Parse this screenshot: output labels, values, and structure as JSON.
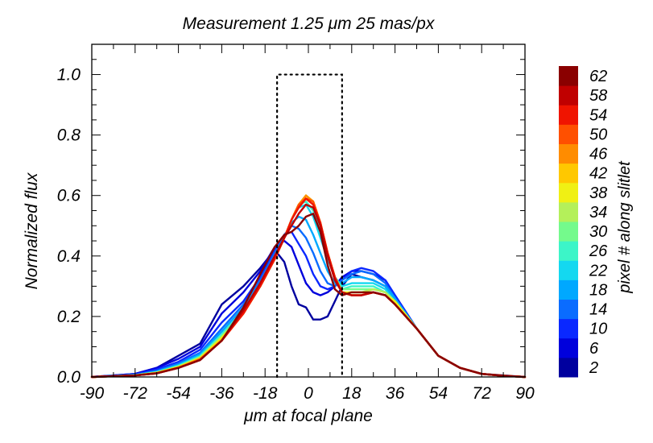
{
  "chart_data": {
    "type": "line",
    "title": "Measurement   1.25 μm   25 mas/px",
    "xlabel": "μm at focal plane",
    "ylabel": "Normalized flux",
    "xlim": [
      -90,
      90
    ],
    "ylim": [
      0,
      1.1
    ],
    "xticks": [
      -90,
      -72,
      -54,
      -36,
      -18,
      0,
      18,
      36,
      54,
      72,
      90
    ],
    "xtick_labels": [
      "-90",
      "-72",
      "-54",
      "-36",
      "-18",
      "0",
      "18",
      "36",
      "54",
      "72",
      "90"
    ],
    "yticks": [
      0,
      0.2,
      0.4,
      0.6,
      0.8,
      1.0
    ],
    "ytick_labels": [
      "0.0",
      "0.2",
      "0.4",
      "0.6",
      "0.8",
      "1.0"
    ],
    "slit_box": {
      "x": [
        -13,
        14
      ],
      "y": [
        0,
        1.0
      ]
    },
    "colorbar": {
      "label": "pixel # along slitlet",
      "tick_labels": [
        "2",
        "6",
        "10",
        "14",
        "18",
        "22",
        "26",
        "30",
        "34",
        "38",
        "42",
        "46",
        "50",
        "54",
        "58",
        "62"
      ],
      "colors": [
        "#00009f",
        "#0000dc",
        "#0a28ff",
        "#0a6cff",
        "#00a8ff",
        "#14d8f0",
        "#3cf5c8",
        "#74fa8c",
        "#b4f05a",
        "#f0f014",
        "#ffc800",
        "#ff8c00",
        "#ff5000",
        "#f01400",
        "#c00000",
        "#8a0000"
      ]
    },
    "series": [
      {
        "name": "2",
        "color": "#00009f",
        "x": [
          -90,
          -72,
          -63,
          -54,
          -45,
          -36,
          -27,
          -20,
          -14,
          -10,
          -7,
          -4,
          -1,
          2,
          5,
          8,
          11,
          14,
          18,
          22,
          27,
          32,
          36,
          45,
          54,
          63,
          72,
          81,
          90
        ],
        "y": [
          0,
          0.01,
          0.03,
          0.07,
          0.11,
          0.24,
          0.3,
          0.36,
          0.42,
          0.38,
          0.3,
          0.24,
          0.23,
          0.19,
          0.19,
          0.2,
          0.25,
          0.3,
          0.34,
          0.33,
          0.32,
          0.3,
          0.25,
          0.16,
          0.07,
          0.03,
          0.01,
          0.005,
          0
        ]
      },
      {
        "name": "6",
        "color": "#0000dc",
        "x": [
          -90,
          -72,
          -63,
          -54,
          -45,
          -36,
          -27,
          -20,
          -14,
          -10,
          -7,
          -4,
          -1,
          2,
          5,
          8,
          11,
          14,
          18,
          22,
          27,
          32,
          36,
          45,
          54,
          63,
          72,
          81,
          90
        ],
        "y": [
          0,
          0.01,
          0.03,
          0.06,
          0.1,
          0.21,
          0.28,
          0.35,
          0.43,
          0.45,
          0.43,
          0.37,
          0.31,
          0.28,
          0.27,
          0.28,
          0.3,
          0.33,
          0.35,
          0.35,
          0.34,
          0.32,
          0.27,
          0.16,
          0.07,
          0.03,
          0.01,
          0.004,
          0
        ]
      },
      {
        "name": "10",
        "color": "#0a28ff",
        "x": [
          -90,
          -72,
          -63,
          -54,
          -45,
          -36,
          -27,
          -20,
          -14,
          -10,
          -7,
          -4,
          -1,
          2,
          5,
          8,
          11,
          14,
          18,
          22,
          27,
          32,
          36,
          45,
          54,
          63,
          72,
          81,
          90
        ],
        "y": [
          0,
          0.008,
          0.025,
          0.05,
          0.09,
          0.18,
          0.25,
          0.33,
          0.42,
          0.47,
          0.48,
          0.44,
          0.4,
          0.34,
          0.3,
          0.29,
          0.3,
          0.32,
          0.35,
          0.36,
          0.35,
          0.32,
          0.27,
          0.16,
          0.07,
          0.03,
          0.01,
          0.004,
          0
        ]
      },
      {
        "name": "14",
        "color": "#0a6cff",
        "x": [
          -90,
          -72,
          -63,
          -54,
          -45,
          -36,
          -27,
          -20,
          -14,
          -10,
          -7,
          -4,
          -1,
          2,
          5,
          8,
          11,
          14,
          18,
          22,
          27,
          32,
          36,
          45,
          54,
          63,
          72,
          81,
          90
        ],
        "y": [
          0,
          0.007,
          0.02,
          0.045,
          0.08,
          0.16,
          0.24,
          0.32,
          0.41,
          0.47,
          0.5,
          0.49,
          0.46,
          0.41,
          0.35,
          0.31,
          0.3,
          0.32,
          0.34,
          0.35,
          0.34,
          0.31,
          0.26,
          0.16,
          0.07,
          0.03,
          0.01,
          0.004,
          0
        ]
      },
      {
        "name": "18",
        "color": "#00a8ff",
        "x": [
          -90,
          -72,
          -63,
          -54,
          -45,
          -36,
          -27,
          -20,
          -14,
          -10,
          -7,
          -4,
          -1,
          2,
          5,
          8,
          11,
          14,
          18,
          22,
          27,
          32,
          36,
          45,
          54,
          63,
          72,
          81,
          90
        ],
        "y": [
          0,
          0.006,
          0.018,
          0.04,
          0.075,
          0.15,
          0.23,
          0.31,
          0.4,
          0.46,
          0.51,
          0.53,
          0.52,
          0.47,
          0.41,
          0.35,
          0.31,
          0.31,
          0.33,
          0.33,
          0.32,
          0.3,
          0.26,
          0.16,
          0.07,
          0.03,
          0.01,
          0.004,
          0
        ]
      },
      {
        "name": "22",
        "color": "#14d8f0",
        "x": [
          -90,
          -72,
          -63,
          -54,
          -45,
          -36,
          -27,
          -20,
          -14,
          -10,
          -7,
          -4,
          -1,
          2,
          5,
          8,
          11,
          14,
          18,
          22,
          27,
          32,
          36,
          45,
          54,
          63,
          72,
          81,
          90
        ],
        "y": [
          0,
          0.006,
          0.016,
          0.038,
          0.07,
          0.14,
          0.22,
          0.3,
          0.39,
          0.46,
          0.52,
          0.56,
          0.57,
          0.53,
          0.46,
          0.39,
          0.33,
          0.3,
          0.31,
          0.31,
          0.31,
          0.29,
          0.25,
          0.16,
          0.07,
          0.03,
          0.01,
          0.004,
          0
        ]
      },
      {
        "name": "26",
        "color": "#3cf5c8",
        "x": [
          -90,
          -72,
          -63,
          -54,
          -45,
          -36,
          -27,
          -20,
          -14,
          -10,
          -7,
          -4,
          -1,
          2,
          5,
          8,
          11,
          14,
          18,
          22,
          27,
          32,
          36,
          45,
          54,
          63,
          72,
          81,
          90
        ],
        "y": [
          0,
          0.006,
          0.015,
          0.036,
          0.068,
          0.14,
          0.22,
          0.3,
          0.39,
          0.46,
          0.52,
          0.57,
          0.58,
          0.55,
          0.48,
          0.4,
          0.33,
          0.29,
          0.3,
          0.3,
          0.3,
          0.28,
          0.25,
          0.16,
          0.07,
          0.03,
          0.01,
          0.004,
          0
        ]
      },
      {
        "name": "30",
        "color": "#74fa8c",
        "x": [
          -90,
          -72,
          -63,
          -54,
          -45,
          -36,
          -27,
          -20,
          -14,
          -10,
          -7,
          -4,
          -1,
          2,
          5,
          8,
          11,
          14,
          18,
          22,
          27,
          32,
          36,
          45,
          54,
          63,
          72,
          81,
          90
        ],
        "y": [
          0,
          0.006,
          0.015,
          0.035,
          0.066,
          0.135,
          0.215,
          0.3,
          0.39,
          0.46,
          0.52,
          0.57,
          0.59,
          0.57,
          0.5,
          0.41,
          0.33,
          0.29,
          0.29,
          0.29,
          0.29,
          0.28,
          0.25,
          0.16,
          0.07,
          0.03,
          0.01,
          0.004,
          0
        ]
      },
      {
        "name": "34",
        "color": "#b4f05a",
        "x": [
          -90,
          -72,
          -63,
          -54,
          -45,
          -36,
          -27,
          -20,
          -14,
          -10,
          -7,
          -4,
          -1,
          2,
          5,
          8,
          11,
          14,
          18,
          22,
          27,
          32,
          36,
          45,
          54,
          63,
          72,
          81,
          90
        ],
        "y": [
          0,
          0.005,
          0.014,
          0.034,
          0.064,
          0.13,
          0.21,
          0.3,
          0.39,
          0.46,
          0.52,
          0.57,
          0.6,
          0.58,
          0.51,
          0.41,
          0.33,
          0.28,
          0.28,
          0.28,
          0.29,
          0.28,
          0.25,
          0.16,
          0.07,
          0.03,
          0.01,
          0.004,
          0
        ]
      },
      {
        "name": "38",
        "color": "#f0f014",
        "x": [
          -90,
          -72,
          -63,
          -54,
          -45,
          -36,
          -27,
          -20,
          -14,
          -10,
          -7,
          -4,
          -1,
          2,
          5,
          8,
          11,
          14,
          18,
          22,
          27,
          32,
          36,
          45,
          54,
          63,
          72,
          81,
          90
        ],
        "y": [
          0,
          0.005,
          0.014,
          0.033,
          0.062,
          0.13,
          0.21,
          0.3,
          0.39,
          0.46,
          0.52,
          0.57,
          0.6,
          0.58,
          0.51,
          0.41,
          0.33,
          0.28,
          0.28,
          0.28,
          0.28,
          0.27,
          0.25,
          0.16,
          0.07,
          0.03,
          0.01,
          0.004,
          0
        ]
      },
      {
        "name": "42",
        "color": "#ffc800",
        "x": [
          -90,
          -72,
          -63,
          -54,
          -45,
          -36,
          -27,
          -20,
          -14,
          -10,
          -7,
          -4,
          -1,
          2,
          5,
          8,
          11,
          14,
          18,
          22,
          27,
          32,
          36,
          45,
          54,
          63,
          72,
          81,
          90
        ],
        "y": [
          0,
          0.005,
          0.013,
          0.032,
          0.06,
          0.125,
          0.21,
          0.3,
          0.39,
          0.46,
          0.52,
          0.57,
          0.6,
          0.58,
          0.51,
          0.41,
          0.33,
          0.28,
          0.27,
          0.27,
          0.28,
          0.27,
          0.24,
          0.16,
          0.07,
          0.03,
          0.01,
          0.004,
          0
        ]
      },
      {
        "name": "46",
        "color": "#ff8c00",
        "x": [
          -90,
          -72,
          -63,
          -54,
          -45,
          -36,
          -27,
          -20,
          -14,
          -10,
          -7,
          -4,
          -1,
          2,
          5,
          8,
          11,
          14,
          18,
          22,
          27,
          32,
          36,
          45,
          54,
          63,
          72,
          81,
          90
        ],
        "y": [
          0,
          0.005,
          0.013,
          0.031,
          0.06,
          0.12,
          0.21,
          0.3,
          0.39,
          0.46,
          0.52,
          0.57,
          0.6,
          0.58,
          0.51,
          0.41,
          0.33,
          0.28,
          0.27,
          0.27,
          0.28,
          0.27,
          0.24,
          0.16,
          0.07,
          0.03,
          0.01,
          0.004,
          0
        ]
      },
      {
        "name": "50",
        "color": "#ff5000",
        "x": [
          -90,
          -72,
          -63,
          -54,
          -45,
          -36,
          -27,
          -20,
          -14,
          -10,
          -7,
          -4,
          -1,
          2,
          5,
          8,
          11,
          14,
          18,
          22,
          27,
          32,
          36,
          45,
          54,
          63,
          72,
          81,
          90
        ],
        "y": [
          0,
          0.005,
          0.012,
          0.03,
          0.058,
          0.12,
          0.21,
          0.3,
          0.39,
          0.46,
          0.52,
          0.57,
          0.59,
          0.58,
          0.51,
          0.41,
          0.33,
          0.28,
          0.27,
          0.27,
          0.28,
          0.27,
          0.24,
          0.16,
          0.07,
          0.03,
          0.01,
          0.004,
          0
        ]
      },
      {
        "name": "54",
        "color": "#f01400",
        "x": [
          -90,
          -72,
          -63,
          -54,
          -45,
          -36,
          -27,
          -20,
          -14,
          -10,
          -7,
          -4,
          -1,
          2,
          5,
          8,
          11,
          14,
          18,
          22,
          27,
          32,
          36,
          45,
          54,
          63,
          72,
          81,
          90
        ],
        "y": [
          0,
          0.005,
          0.012,
          0.03,
          0.056,
          0.12,
          0.21,
          0.3,
          0.39,
          0.46,
          0.52,
          0.56,
          0.59,
          0.57,
          0.51,
          0.41,
          0.33,
          0.28,
          0.27,
          0.27,
          0.28,
          0.27,
          0.24,
          0.16,
          0.07,
          0.03,
          0.01,
          0.004,
          0
        ]
      },
      {
        "name": "58",
        "color": "#c00000",
        "x": [
          -90,
          -72,
          -63,
          -54,
          -45,
          -36,
          -27,
          -20,
          -14,
          -10,
          -7,
          -4,
          -1,
          2,
          5,
          8,
          11,
          14,
          18,
          22,
          27,
          32,
          36,
          45,
          54,
          63,
          72,
          81,
          90
        ],
        "y": [
          0,
          0.005,
          0.012,
          0.03,
          0.056,
          0.12,
          0.22,
          0.31,
          0.4,
          0.46,
          0.5,
          0.54,
          0.57,
          0.56,
          0.5,
          0.4,
          0.32,
          0.28,
          0.27,
          0.27,
          0.28,
          0.27,
          0.24,
          0.16,
          0.07,
          0.03,
          0.01,
          0.004,
          0
        ]
      },
      {
        "name": "62",
        "color": "#8a0000",
        "x": [
          -90,
          -72,
          -63,
          -54,
          -45,
          -36,
          -27,
          -20,
          -14,
          -10,
          -7,
          -4,
          -1,
          2,
          5,
          8,
          11,
          14,
          18,
          22,
          27,
          32,
          36,
          45,
          54,
          63,
          72,
          81,
          90
        ],
        "y": [
          0,
          0.005,
          0.012,
          0.03,
          0.056,
          0.12,
          0.23,
          0.34,
          0.43,
          0.47,
          0.48,
          0.5,
          0.53,
          0.54,
          0.48,
          0.37,
          0.29,
          0.27,
          0.28,
          0.28,
          0.28,
          0.27,
          0.24,
          0.16,
          0.07,
          0.03,
          0.01,
          0.004,
          0
        ]
      }
    ]
  }
}
